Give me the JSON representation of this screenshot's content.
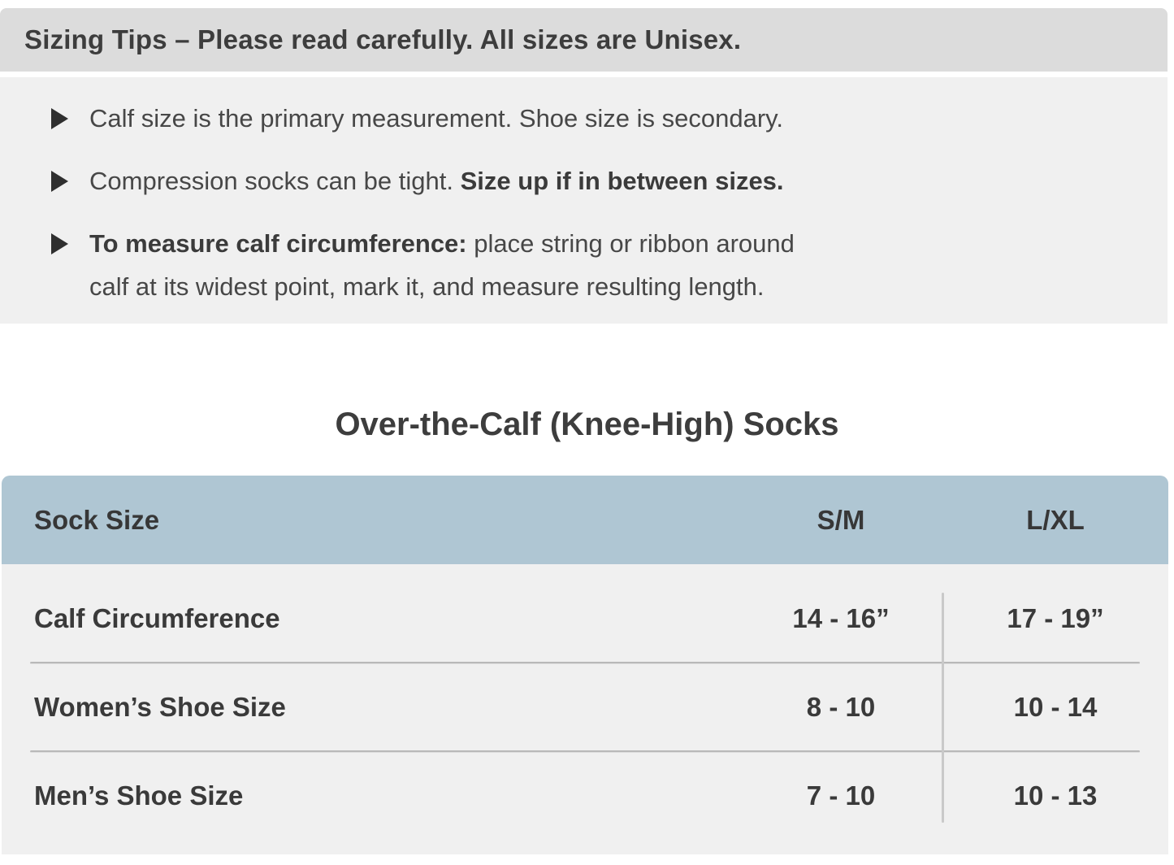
{
  "banner": {
    "title": "Sizing Tips – Please read carefully. All sizes are Unisex."
  },
  "tips": [
    {
      "prefix": "Calf size is the primary measurement. Shoe size is secondary.",
      "bold": "",
      "suffix": ""
    },
    {
      "prefix": "Compression socks can be tight. ",
      "bold": "Size up if in between sizes.",
      "suffix": ""
    },
    {
      "prefix": "",
      "bold": "To measure calf circumference:",
      "suffix_line1": " place string or ribbon around",
      "suffix_line2": "calf at its widest point, mark it, and measure resulting length."
    }
  ],
  "section": {
    "title": "Over-the-Calf (Knee-High) Socks"
  },
  "table": {
    "columns": [
      "Sock Size",
      "S/M",
      "L/XL"
    ],
    "rows": [
      {
        "label": "Calf Circumference",
        "sm": "14 - 16”",
        "lxl": "17 - 19”"
      },
      {
        "label": "Women’s Shoe Size",
        "sm": "8 - 10",
        "lxl": "10 - 14"
      },
      {
        "label": "Men’s Shoe Size",
        "sm": "7 - 10",
        "lxl": "10 - 13"
      }
    ]
  },
  "icons": {
    "bullet": "right-triangle-icon"
  },
  "colors": {
    "banner_bg": "#dcdcdc",
    "tips_bg": "#f0f0f0",
    "table_header_bg": "#afc6d3",
    "table_body_bg": "#f0f0f0",
    "divider": "#b9b9b9",
    "text": "#3d3d3d"
  }
}
